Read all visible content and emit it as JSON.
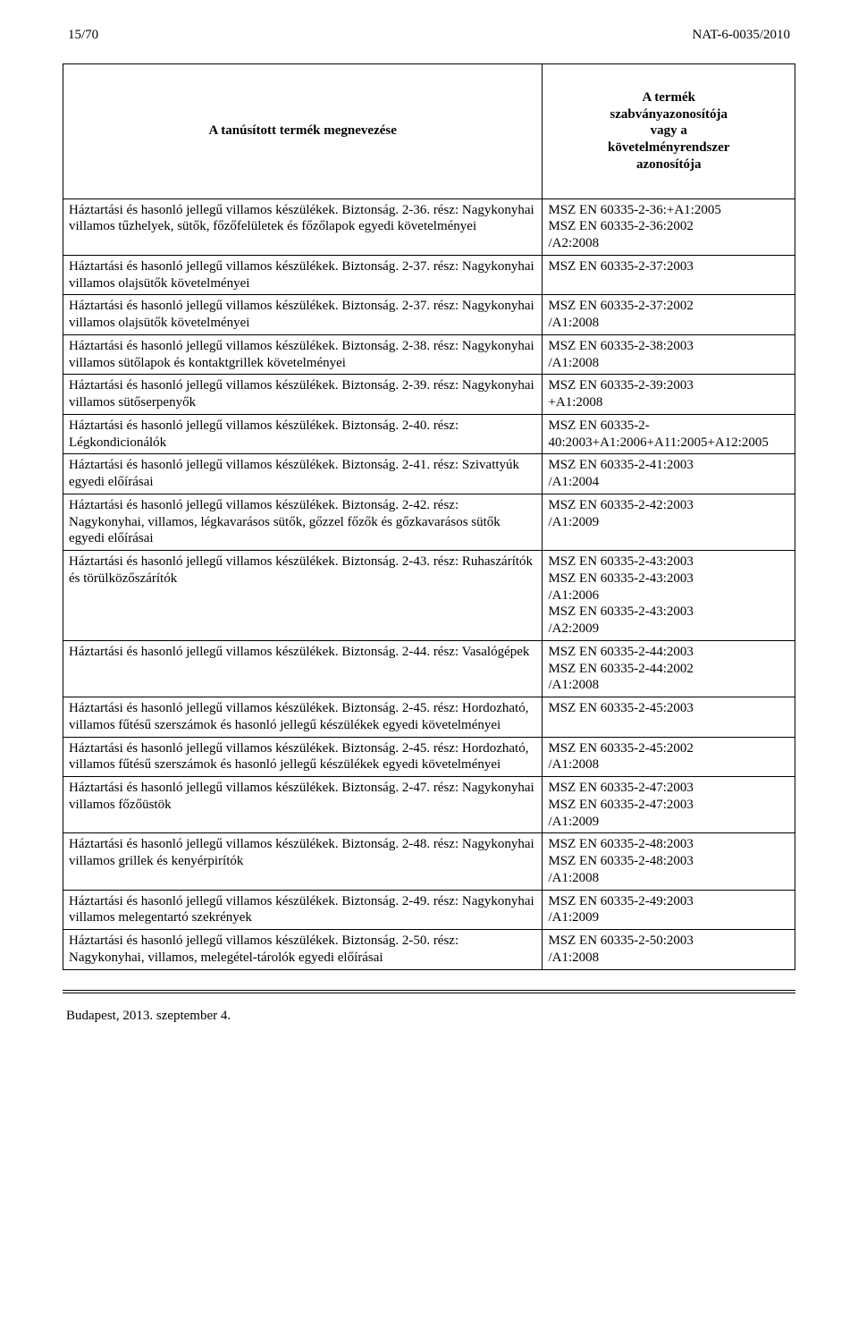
{
  "header": {
    "page_num": "15/70",
    "doc_ref": "NAT-6-0035/2010"
  },
  "table": {
    "head_left": "A tanúsított termék megnevezése",
    "head_right": "A termék\nszabványazonosítója\nvagy a\nkövetelményrendszer\nazonosítója",
    "rows": [
      {
        "l": "Háztartási és hasonló jellegű villamos készülékek. Biztonság. 2-36. rész: Nagykonyhai villamos tűzhelyek, sütők, főzőfelületek és főzőlapok egyedi követelményei",
        "r": "MSZ EN 60335-2-36:+A1:2005\nMSZ EN 60335-2-36:2002\n/A2:2008"
      },
      {
        "l": "Háztartási és hasonló jellegű villamos készülékek. Biztonság. 2-37. rész: Nagykonyhai villamos olajsütők követelményei",
        "r": "MSZ EN 60335-2-37:2003"
      },
      {
        "l": "Háztartási és hasonló jellegű villamos készülékek. Biztonság. 2-37. rész: Nagykonyhai villamos olajsütők követelményei",
        "r": "MSZ EN 60335-2-37:2002\n/A1:2008"
      },
      {
        "l": "Háztartási és hasonló jellegű villamos készülékek. Biztonság. 2-38. rész: Nagykonyhai villamos sütőlapok és kontaktgrillek követelményei",
        "r": "MSZ EN 60335-2-38:2003\n/A1:2008"
      },
      {
        "l": "Háztartási és hasonló jellegű villamos készülékek. Biztonság. 2-39. rész: Nagykonyhai villamos sütőserpenyők",
        "r": "MSZ EN 60335-2-39:2003\n+A1:2008"
      },
      {
        "l": "Háztartási és hasonló jellegű villamos készülékek. Biztonság. 2-40. rész: Légkondicionálók",
        "r": "MSZ EN 60335-2-40:2003+A1:2006+A11:2005+A12:2005"
      },
      {
        "l": "Háztartási és hasonló jellegű villamos készülékek. Biztonság. 2-41. rész: Szivattyúk egyedi előírásai",
        "r": "MSZ EN 60335-2-41:2003\n/A1:2004"
      },
      {
        "l": "Háztartási és hasonló jellegű villamos készülékek. Biztonság. 2-42. rész: Nagykonyhai, villamos, légkavarásos sütők, gőzzel főzők és gőzkavarásos sütők egyedi előírásai",
        "r": "MSZ EN 60335-2-42:2003\n/A1:2009"
      },
      {
        "l": "Háztartási és hasonló jellegű villamos készülékek. Biztonság. 2-43. rész: Ruhaszárítók és törülközőszárítók",
        "r": "MSZ EN 60335-2-43:2003\nMSZ EN 60335-2-43:2003\n/A1:2006\nMSZ EN 60335-2-43:2003\n/A2:2009"
      },
      {
        "l": "Háztartási és hasonló jellegű villamos készülékek. Biztonság. 2-44. rész: Vasalógépek",
        "r": "MSZ EN 60335-2-44:2003\nMSZ EN 60335-2-44:2002\n/A1:2008"
      },
      {
        "l": "Háztartási és hasonló jellegű villamos készülékek. Biztonság. 2-45. rész: Hordozható, villamos fűtésű szerszámok és hasonló jellegű készülékek egyedi követelményei",
        "r": "MSZ EN 60335-2-45:2003"
      },
      {
        "l": "Háztartási és hasonló jellegű villamos készülékek. Biztonság. 2-45. rész: Hordozható, villamos fűtésű szerszámok és hasonló jellegű készülékek egyedi követelményei",
        "r": "MSZ EN 60335-2-45:2002\n/A1:2008"
      },
      {
        "l": "Háztartási és hasonló jellegű villamos készülékek. Biztonság. 2-47. rész: Nagykonyhai villamos főzőüstök",
        "r": "MSZ EN 60335-2-47:2003\nMSZ EN 60335-2-47:2003\n/A1:2009"
      },
      {
        "l": "Háztartási és hasonló jellegű villamos készülékek. Biztonság. 2-48. rész: Nagykonyhai villamos grillek és kenyérpirítók",
        "r": "MSZ EN 60335-2-48:2003\nMSZ EN 60335-2-48:2003\n/A1:2008"
      },
      {
        "l": "Háztartási és hasonló jellegű villamos készülékek. Biztonság. 2-49. rész: Nagykonyhai villamos melegentartó szekrények",
        "r": "MSZ EN 60335-2-49:2003\n/A1:2009"
      },
      {
        "l": "Háztartási és hasonló jellegű villamos készülékek. Biztonság. 2-50. rész: Nagykonyhai, villamos, melegétel-tárolók egyedi előírásai",
        "r": "MSZ EN 60335-2-50:2003\n/A1:2008"
      }
    ]
  },
  "footer": {
    "text": "Budapest, 2013. szeptember 4."
  }
}
